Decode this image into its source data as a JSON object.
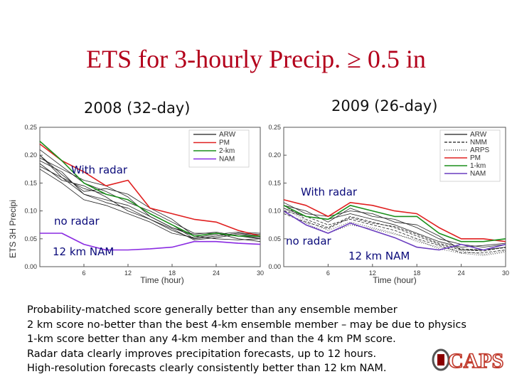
{
  "slide": {
    "title": "ETS for 3-hourly Precip. ≥ 0.5 in",
    "left_year": "2008 (32-day)",
    "right_year": "2009 (26-day)",
    "annotations": {
      "with_radar_left": "With radar",
      "no_radar_left": "no radar",
      "nam_left": "12 km NAM",
      "with_radar_right": "With radar",
      "no_radar_right": "no radar",
      "nam_right": "12 km NAM"
    },
    "bullets": [
      "Probability-matched score generally better than any ensemble member",
      "2 km score no-better than the best 4-km ensemble member – may be due to physics",
      "1-km score better than any 4-km member and than the 4 km PM score.",
      "Radar data clearly improves precipitation forecasts, up to 12 hours.",
      "High-resolution forecasts clearly consistently better than 12 km NAM."
    ],
    "logo_text": "CAPS"
  },
  "chart_data": [
    {
      "type": "line",
      "title": "2008 (32-day)",
      "xlabel": "Time (hour)",
      "ylabel": "ETS 3H Precipi",
      "xlim": [
        0,
        30
      ],
      "ylim": [
        0,
        0.25
      ],
      "xticks": [
        6,
        12,
        18,
        24,
        30
      ],
      "yticks": [
        0.0,
        0.05,
        0.1,
        0.15,
        0.2,
        0.25
      ],
      "legend_position": "top-right",
      "legend": [
        {
          "name": "ARW",
          "color": "#444444",
          "dash": "solid"
        },
        {
          "name": "PM",
          "color": "#e02020",
          "dash": "solid"
        },
        {
          "name": "2-km",
          "color": "#1a8f1a",
          "dash": "solid"
        },
        {
          "name": "NAM",
          "color": "#8a2be2",
          "dash": "solid"
        }
      ],
      "x": [
        0,
        3,
        6,
        9,
        12,
        15,
        18,
        21,
        24,
        27,
        30
      ],
      "series": [
        {
          "name": "PM",
          "color": "#e02020",
          "width": 1.6,
          "dash": "",
          "values": [
            0.22,
            0.19,
            0.17,
            0.145,
            0.155,
            0.105,
            0.095,
            0.085,
            0.08,
            0.065,
            0.055
          ]
        },
        {
          "name": "2-km",
          "color": "#1a8f1a",
          "width": 1.6,
          "dash": "",
          "values": [
            0.225,
            0.19,
            0.15,
            0.13,
            0.12,
            0.095,
            0.075,
            0.055,
            0.06,
            0.055,
            0.055
          ]
        },
        {
          "name": "NAM",
          "color": "#8a2be2",
          "width": 1.6,
          "dash": "",
          "values": [
            0.06,
            0.06,
            0.04,
            0.03,
            0.03,
            0.032,
            0.035,
            0.045,
            0.045,
            0.042,
            0.04
          ]
        },
        {
          "name": "ARW-1",
          "color": "#222222",
          "width": 0.8,
          "dash": "",
          "values": [
            0.2,
            0.16,
            0.14,
            0.13,
            0.12,
            0.095,
            0.075,
            0.05,
            0.055,
            0.06,
            0.055
          ]
        },
        {
          "name": "ARW-2",
          "color": "#222222",
          "width": 0.8,
          "dash": "",
          "values": [
            0.19,
            0.17,
            0.13,
            0.12,
            0.11,
            0.09,
            0.07,
            0.055,
            0.06,
            0.055,
            0.05
          ]
        },
        {
          "name": "ARW-3",
          "color": "#222222",
          "width": 0.8,
          "dash": "",
          "values": [
            0.21,
            0.18,
            0.15,
            0.135,
            0.115,
            0.1,
            0.08,
            0.06,
            0.06,
            0.05,
            0.045
          ]
        },
        {
          "name": "ARW-4",
          "color": "#222222",
          "width": 0.8,
          "dash": "",
          "values": [
            0.185,
            0.155,
            0.145,
            0.125,
            0.1,
            0.085,
            0.065,
            0.05,
            0.055,
            0.06,
            0.058
          ]
        },
        {
          "name": "ARW-5",
          "color": "#222222",
          "width": 0.8,
          "dash": "",
          "values": [
            0.2,
            0.165,
            0.135,
            0.14,
            0.13,
            0.105,
            0.085,
            0.055,
            0.05,
            0.048,
            0.05
          ]
        },
        {
          "name": "ARW-6",
          "color": "#222222",
          "width": 0.8,
          "dash": "",
          "values": [
            0.175,
            0.15,
            0.12,
            0.11,
            0.095,
            0.08,
            0.06,
            0.052,
            0.058,
            0.062,
            0.06
          ]
        },
        {
          "name": "ARW-7",
          "color": "#222222",
          "width": 0.8,
          "dash": "",
          "values": [
            0.195,
            0.175,
            0.155,
            0.145,
            0.125,
            0.09,
            0.07,
            0.058,
            0.062,
            0.055,
            0.052
          ]
        },
        {
          "name": "ARW-8",
          "color": "#222222",
          "width": 0.8,
          "dash": "",
          "values": [
            0.18,
            0.16,
            0.13,
            0.115,
            0.105,
            0.085,
            0.068,
            0.048,
            0.052,
            0.058,
            0.054
          ]
        }
      ]
    },
    {
      "type": "line",
      "title": "2009 (26-day)",
      "xlabel": "Time (hour)",
      "ylabel": "",
      "xlim": [
        0,
        30
      ],
      "ylim": [
        0,
        0.25
      ],
      "xticks": [
        6,
        12,
        18,
        24,
        30
      ],
      "yticks": [
        0.0,
        0.05,
        0.1,
        0.15,
        0.2,
        0.25
      ],
      "legend_position": "top-right",
      "legend": [
        {
          "name": "ARW",
          "color": "#444444",
          "dash": "solid"
        },
        {
          "name": "NMM",
          "color": "#444444",
          "dash": "dashed"
        },
        {
          "name": "ARPS",
          "color": "#444444",
          "dash": "dotted"
        },
        {
          "name": "PM",
          "color": "#e02020",
          "dash": "solid"
        },
        {
          "name": "1-km",
          "color": "#1a8f1a",
          "dash": "solid"
        },
        {
          "name": "NAM",
          "color": "#6a3dbf",
          "dash": "solid"
        }
      ],
      "x": [
        0,
        3,
        6,
        9,
        12,
        15,
        18,
        21,
        24,
        27,
        30
      ],
      "series": [
        {
          "name": "PM",
          "color": "#e02020",
          "width": 1.6,
          "dash": "",
          "values": [
            0.12,
            0.11,
            0.09,
            0.115,
            0.11,
            0.1,
            0.095,
            0.07,
            0.05,
            0.05,
            0.045
          ]
        },
        {
          "name": "1-km",
          "color": "#1a8f1a",
          "width": 1.6,
          "dash": "",
          "values": [
            0.11,
            0.09,
            0.085,
            0.11,
            0.1,
            0.09,
            0.09,
            0.06,
            0.045,
            0.045,
            0.05
          ]
        },
        {
          "name": "NAM",
          "color": "#6a3dbf",
          "width": 1.6,
          "dash": "",
          "values": [
            0.1,
            0.075,
            0.06,
            0.078,
            0.065,
            0.052,
            0.035,
            0.03,
            0.04,
            0.03,
            0.04
          ]
        },
        {
          "name": "ARW-1",
          "color": "#222222",
          "width": 0.8,
          "dash": "",
          "values": [
            0.11,
            0.1,
            0.08,
            0.105,
            0.09,
            0.085,
            0.07,
            0.05,
            0.04,
            0.035,
            0.04
          ]
        },
        {
          "name": "ARW-2",
          "color": "#222222",
          "width": 0.8,
          "dash": "",
          "values": [
            0.115,
            0.095,
            0.09,
            0.1,
            0.095,
            0.08,
            0.075,
            0.055,
            0.03,
            0.03,
            0.035
          ]
        },
        {
          "name": "ARW-3",
          "color": "#222222",
          "width": 0.8,
          "dash": "",
          "values": [
            0.105,
            0.09,
            0.085,
            0.095,
            0.085,
            0.075,
            0.06,
            0.045,
            0.035,
            0.038,
            0.042
          ]
        },
        {
          "name": "NMM-1",
          "color": "#222222",
          "width": 0.8,
          "dash": "4,2",
          "values": [
            0.11,
            0.085,
            0.07,
            0.09,
            0.08,
            0.07,
            0.055,
            0.04,
            0.03,
            0.028,
            0.035
          ]
        },
        {
          "name": "NMM-2",
          "color": "#222222",
          "width": 0.8,
          "dash": "4,2",
          "values": [
            0.1,
            0.09,
            0.075,
            0.085,
            0.075,
            0.065,
            0.05,
            0.038,
            0.025,
            0.025,
            0.03
          ]
        },
        {
          "name": "NMM-3",
          "color": "#222222",
          "width": 0.8,
          "dash": "4,2",
          "values": [
            0.095,
            0.08,
            0.068,
            0.088,
            0.078,
            0.072,
            0.058,
            0.042,
            0.032,
            0.03,
            0.034
          ]
        },
        {
          "name": "ARPS-1",
          "color": "#222222",
          "width": 0.8,
          "dash": "1,2",
          "values": [
            0.105,
            0.082,
            0.065,
            0.08,
            0.07,
            0.06,
            0.045,
            0.035,
            0.028,
            0.022,
            0.028
          ]
        },
        {
          "name": "ARPS-2",
          "color": "#222222",
          "width": 0.8,
          "dash": "1,2",
          "values": [
            0.098,
            0.078,
            0.06,
            0.075,
            0.068,
            0.058,
            0.048,
            0.032,
            0.024,
            0.02,
            0.026
          ]
        }
      ]
    }
  ]
}
